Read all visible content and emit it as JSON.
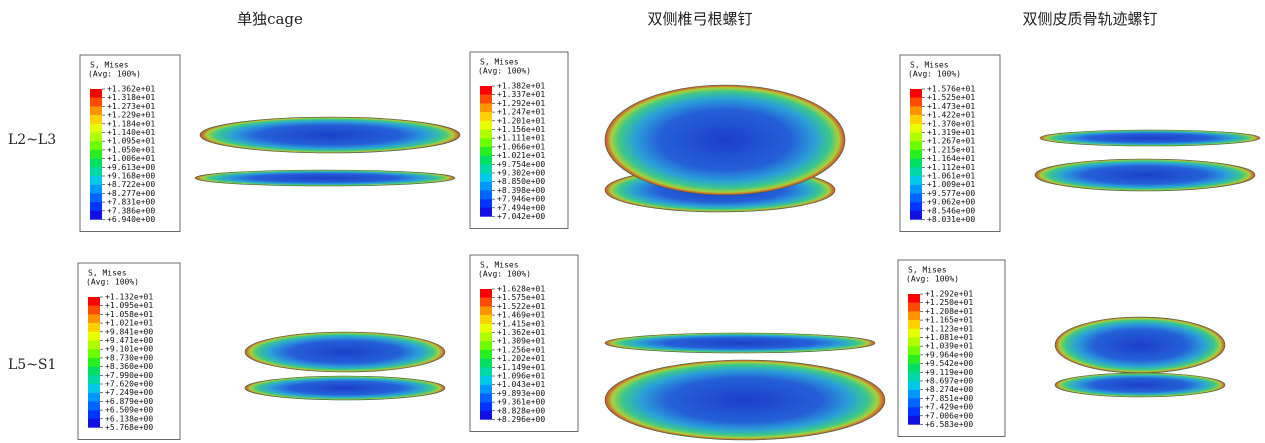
{
  "columns": [
    "单独cage",
    "双侧椎弓根螺钉",
    "双侧皮质骨轨迹螺钉"
  ],
  "rows": [
    {
      "label": "L2~L3",
      "panels": [
        {
          "legend_title": "S, Mises",
          "legend_subtitle": "(Avg: 100%)",
          "values": [
            "+1.362e+01",
            "+1.318e+01",
            "+1.273e+01",
            "+1.229e+01",
            "+1.184e+01",
            "+1.140e+01",
            "+1.095e+01",
            "+1.050e+01",
            "+1.006e+01",
            "+9.613e+00",
            "+9.168e+00",
            "+8.722e+00",
            "+8.277e+00",
            "+7.831e+00",
            "+7.386e+00",
            "+6.940e+00"
          ]
        },
        {
          "legend_title": "S, Mises",
          "legend_subtitle": "(Avg: 100%)",
          "values": [
            "+1.382e+01",
            "+1.337e+01",
            "+1.292e+01",
            "+1.247e+01",
            "+1.201e+01",
            "+1.156e+01",
            "+1.111e+01",
            "+1.066e+01",
            "+1.021e+01",
            "+9.754e+00",
            "+9.302e+00",
            "+8.850e+00",
            "+8.398e+00",
            "+7.946e+00",
            "+7.494e+00",
            "+7.042e+00"
          ]
        },
        {
          "legend_title": "S, Mises",
          "legend_subtitle": "(Avg: 100%)",
          "values": [
            "+1.576e+01",
            "+1.525e+01",
            "+1.473e+01",
            "+1.422e+01",
            "+1.370e+01",
            "+1.319e+01",
            "+1.267e+01",
            "+1.215e+01",
            "+1.164e+01",
            "+1.112e+01",
            "+1.061e+01",
            "+1.009e+01",
            "+9.577e+00",
            "+9.062e+00",
            "+8.546e+00",
            "+8.031e+00"
          ]
        }
      ]
    },
    {
      "label": "L5~S1",
      "panels": [
        {
          "legend_title": "S, Mises",
          "legend_subtitle": "(Avg: 100%)",
          "values": [
            "+1.132e+01",
            "+1.095e+01",
            "+1.058e+01",
            "+1.021e+01",
            "+9.841e+00",
            "+9.471e+00",
            "+9.101e+00",
            "+8.730e+00",
            "+8.360e+00",
            "+7.990e+00",
            "+7.620e+00",
            "+7.249e+00",
            "+6.879e+00",
            "+6.509e+00",
            "+6.138e+00",
            "+5.768e+00"
          ]
        },
        {
          "legend_title": "S, Mises",
          "legend_subtitle": "(Avg: 100%)",
          "values": [
            "+1.628e+01",
            "+1.575e+01",
            "+1.522e+01",
            "+1.469e+01",
            "+1.415e+01",
            "+1.362e+01",
            "+1.309e+01",
            "+1.256e+01",
            "+1.202e+01",
            "+1.149e+01",
            "+1.096e+01",
            "+1.043e+01",
            "+9.893e+00",
            "+9.361e+00",
            "+8.828e+00",
            "+8.296e+00"
          ]
        },
        {
          "legend_title": "S, Mises",
          "legend_subtitle": "(Avg: 100%)",
          "values": [
            "+1.292e+01",
            "+1.250e+01",
            "+1.208e+01",
            "+1.165e+01",
            "+1.123e+01",
            "+1.081e+01",
            "+1.039e+01",
            "+9.964e+00",
            "+9.542e+00",
            "+9.119e+00",
            "+8.697e+00",
            "+8.274e+00",
            "+7.851e+00",
            "+7.429e+00",
            "+7.006e+00",
            "+6.583e+00"
          ]
        }
      ]
    }
  ]
}
